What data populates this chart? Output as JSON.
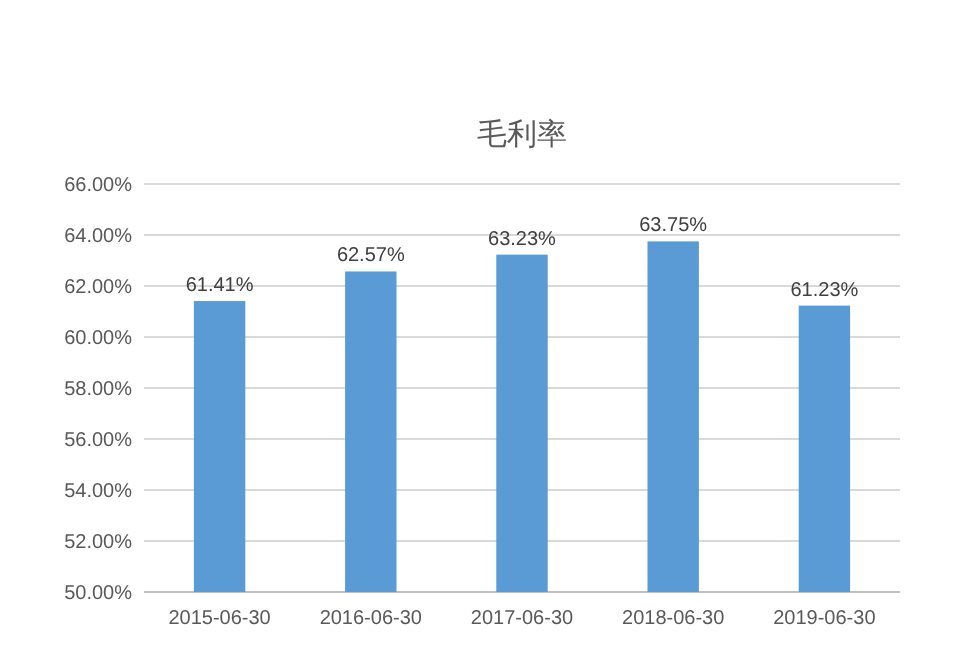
{
  "chart_data": {
    "type": "bar",
    "title": "毛利率",
    "categories": [
      "2015-06-30",
      "2016-06-30",
      "2017-06-30",
      "2018-06-30",
      "2019-06-30"
    ],
    "values": [
      61.41,
      62.57,
      63.23,
      63.75,
      61.23
    ],
    "value_labels": [
      "61.41%",
      "62.57%",
      "63.23%",
      "63.75%",
      "61.23%"
    ],
    "color": "#5b9bd5",
    "ylim": [
      50,
      66
    ],
    "yticks": [
      {
        "value": 50,
        "label": "50.00%"
      },
      {
        "value": 52,
        "label": "52.00%"
      },
      {
        "value": 54,
        "label": "54.00%"
      },
      {
        "value": 56,
        "label": "56.00%"
      },
      {
        "value": 58,
        "label": "58.00%"
      },
      {
        "value": 60,
        "label": "60.00%"
      },
      {
        "value": 62,
        "label": "62.00%"
      },
      {
        "value": 64,
        "label": "64.00%"
      },
      {
        "value": 66,
        "label": "66.00%"
      }
    ],
    "grid": "y"
  }
}
